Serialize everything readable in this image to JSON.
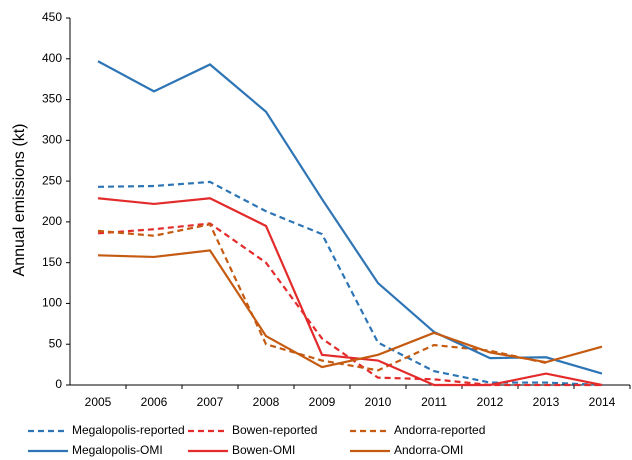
{
  "chart_data": {
    "type": "line",
    "y_label": "Annual emissions (kt)",
    "categories": [
      "2005",
      "2006",
      "2007",
      "2008",
      "2009",
      "2010",
      "2011",
      "2012",
      "2013",
      "2014"
    ],
    "ylim": [
      0,
      450
    ],
    "yticks": [
      0,
      50,
      100,
      150,
      200,
      250,
      300,
      350,
      400,
      450
    ],
    "grid": false,
    "legend": "bottom",
    "series": [
      {
        "name": "Megalopolis-reported",
        "color": "#2e75b6",
        "style": "dashed",
        "values": [
          243,
          244,
          249,
          213,
          185,
          52,
          17,
          3,
          3,
          0
        ]
      },
      {
        "name": "Bowen-reported",
        "color": "#e32b2b",
        "style": "dashed",
        "values": [
          186,
          191,
          198,
          150,
          57,
          9,
          7,
          0,
          0,
          0
        ]
      },
      {
        "name": "Andorra-reported",
        "color": "#c55a11",
        "style": "dashed",
        "values": [
          189,
          183,
          197,
          50,
          30,
          18,
          49,
          42,
          27,
          null
        ]
      },
      {
        "name": "Megalopolis-OMI",
        "color": "#2e75b6",
        "style": "solid",
        "values": [
          397,
          360,
          393,
          335,
          228,
          125,
          65,
          33,
          34,
          14
        ]
      },
      {
        "name": "Bowen-OMI",
        "color": "#e32b2b",
        "style": "solid",
        "values": [
          229,
          222,
          229,
          195,
          37,
          30,
          0,
          0,
          14,
          0
        ]
      },
      {
        "name": "Andorra-OMI",
        "color": "#c55a11",
        "style": "solid",
        "values": [
          159,
          157,
          165,
          60,
          22,
          37,
          64,
          40,
          28,
          47
        ]
      }
    ]
  }
}
